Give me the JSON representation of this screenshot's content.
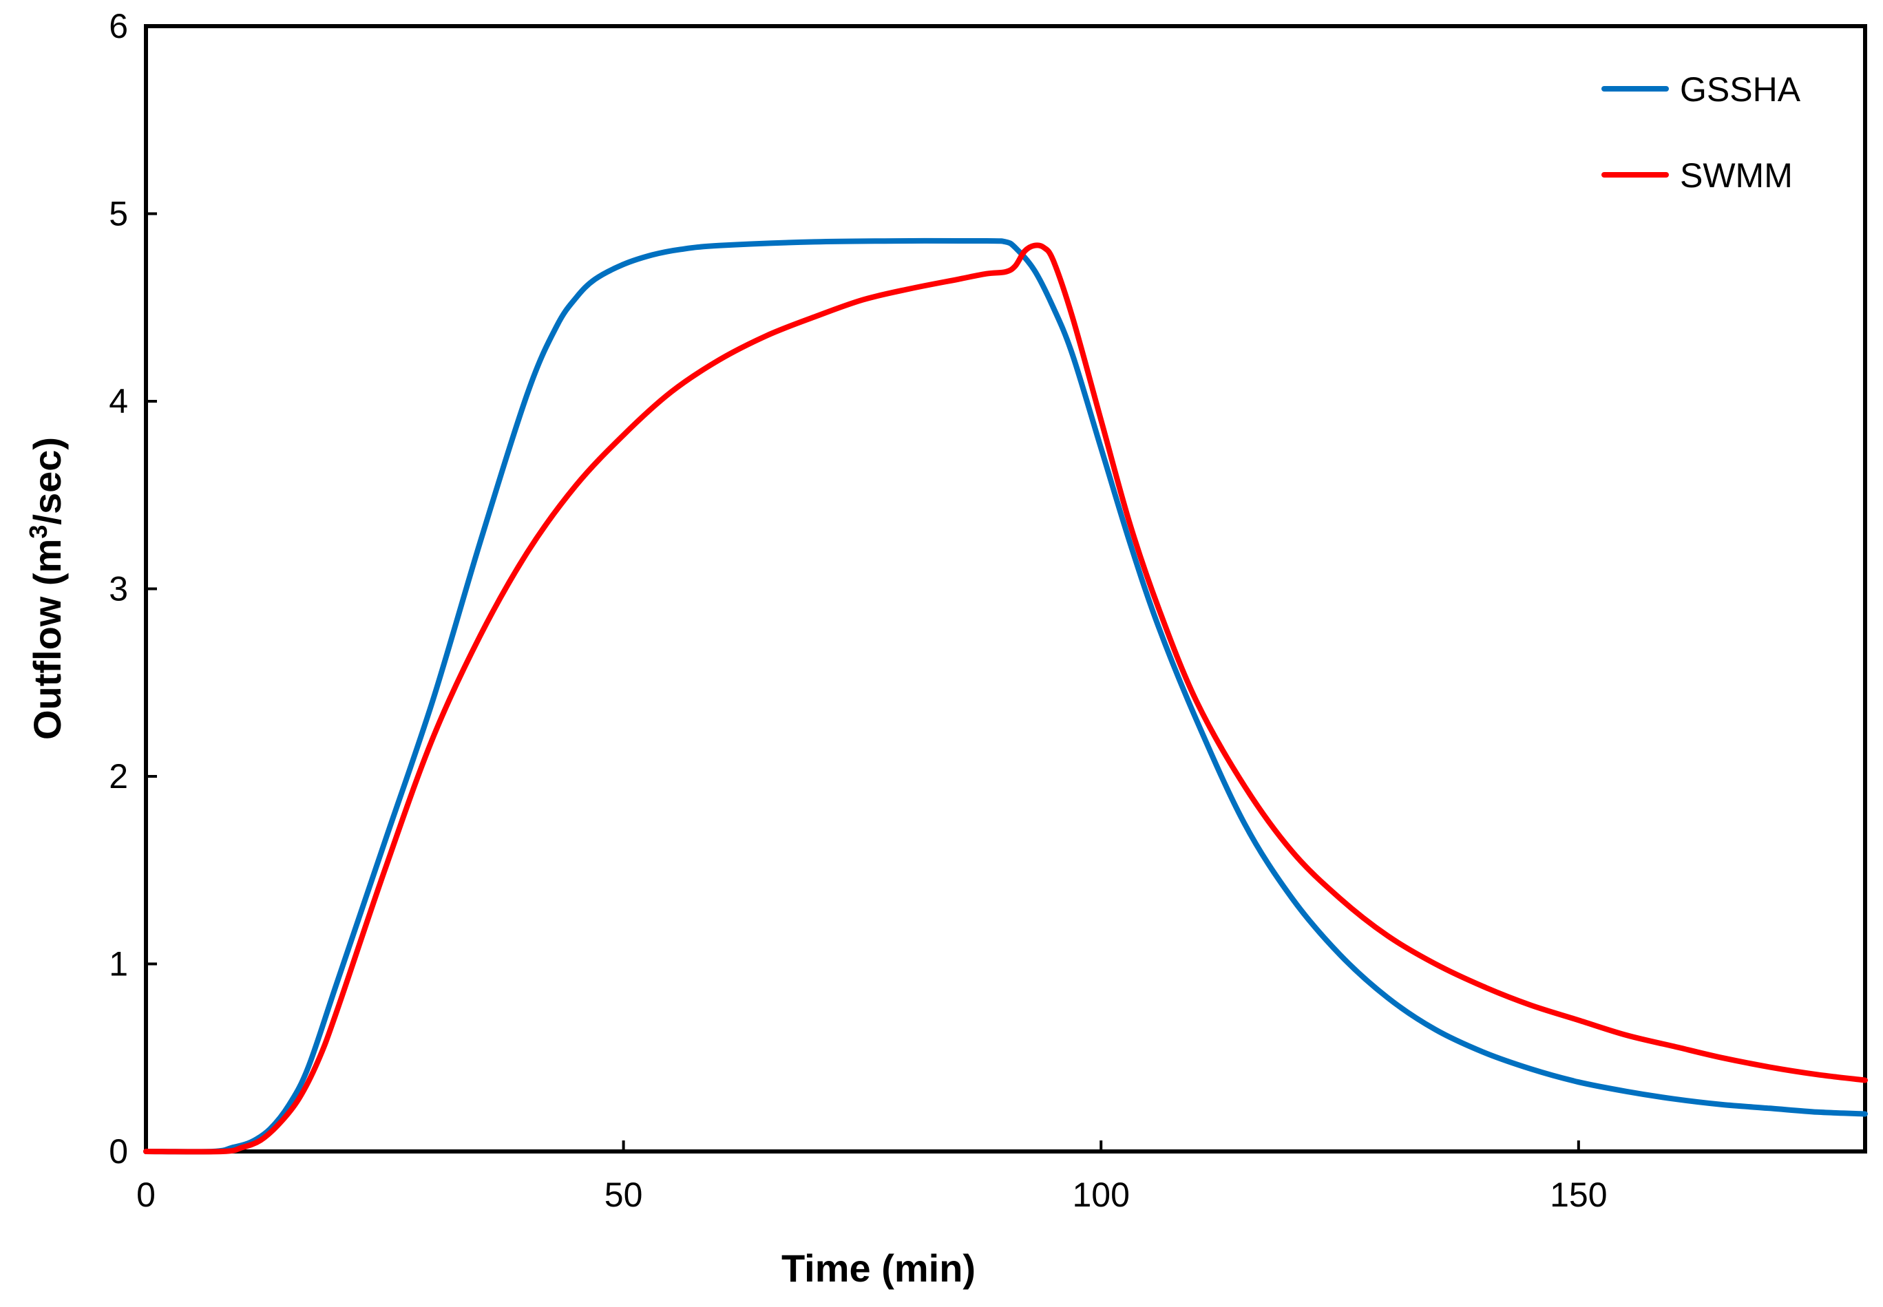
{
  "chart_data": {
    "type": "line",
    "title": "",
    "xlabel": "Time (min)",
    "ylabel_parts": [
      "Outflow (m",
      "3",
      "/sec)"
    ],
    "xlim": [
      0,
      180
    ],
    "ylim": [
      0,
      6
    ],
    "xticks": [
      0,
      50,
      100,
      150
    ],
    "yticks": [
      0,
      1,
      2,
      3,
      4,
      5,
      6
    ],
    "grid": false,
    "legend_position": "top-right",
    "series": [
      {
        "name": "GSSHA",
        "color": "#0070C0",
        "x": [
          0,
          7,
          9,
          11,
          13,
          15,
          17,
          20,
          25,
          30,
          35,
          40,
          43,
          45,
          47,
          50,
          53,
          56,
          60,
          70,
          80,
          88,
          90,
          91,
          93,
          95,
          97,
          100,
          103,
          106,
          110,
          115,
          120,
          125,
          130,
          135,
          140,
          145,
          150,
          155,
          160,
          165,
          170,
          175,
          180
        ],
        "values": [
          0,
          0,
          0.02,
          0.05,
          0.12,
          0.25,
          0.45,
          0.9,
          1.65,
          2.4,
          3.25,
          4.05,
          4.4,
          4.55,
          4.65,
          4.73,
          4.78,
          4.81,
          4.83,
          4.85,
          4.855,
          4.855,
          4.85,
          4.82,
          4.7,
          4.5,
          4.25,
          3.75,
          3.25,
          2.8,
          2.3,
          1.75,
          1.35,
          1.05,
          0.82,
          0.65,
          0.53,
          0.44,
          0.37,
          0.32,
          0.28,
          0.25,
          0.23,
          0.21,
          0.2
        ]
      },
      {
        "name": "SWMM",
        "color": "#FF0000",
        "x": [
          0,
          8,
          10,
          12,
          14,
          16,
          18,
          20,
          25,
          30,
          35,
          40,
          45,
          50,
          55,
          60,
          65,
          70,
          75,
          80,
          85,
          88,
          90,
          91,
          92,
          93,
          94,
          95,
          97,
          100,
          103,
          106,
          110,
          115,
          120,
          125,
          130,
          135,
          140,
          145,
          150,
          155,
          160,
          165,
          170,
          175,
          180
        ],
        "values": [
          0,
          0,
          0.02,
          0.06,
          0.15,
          0.28,
          0.48,
          0.75,
          1.5,
          2.2,
          2.75,
          3.2,
          3.55,
          3.82,
          4.05,
          4.22,
          4.35,
          4.45,
          4.54,
          4.6,
          4.65,
          4.68,
          4.69,
          4.72,
          4.8,
          4.83,
          4.82,
          4.75,
          4.45,
          3.9,
          3.35,
          2.9,
          2.4,
          1.95,
          1.6,
          1.35,
          1.15,
          1.0,
          0.88,
          0.78,
          0.7,
          0.62,
          0.56,
          0.5,
          0.45,
          0.41,
          0.38
        ]
      }
    ]
  }
}
